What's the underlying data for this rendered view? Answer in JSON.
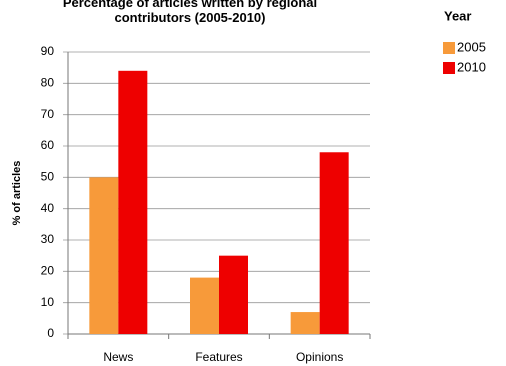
{
  "chart_data": {
    "type": "bar",
    "title": "Percentage of articles written by regional contributors (2005-2010)",
    "y_label": "% of articles",
    "legend_title": "Year",
    "categories": [
      "News",
      "Features",
      "Opinions"
    ],
    "series": [
      {
        "name": "2005",
        "color": "#f79a3a",
        "values": [
          50,
          18,
          7
        ]
      },
      {
        "name": "2010",
        "color": "#ee0000",
        "values": [
          84,
          25,
          58
        ]
      }
    ],
    "ylim": [
      0,
      90
    ],
    "yticks": [
      0,
      10,
      20,
      30,
      40,
      50,
      60,
      70,
      80,
      90
    ],
    "grid": true,
    "legend": "right"
  }
}
